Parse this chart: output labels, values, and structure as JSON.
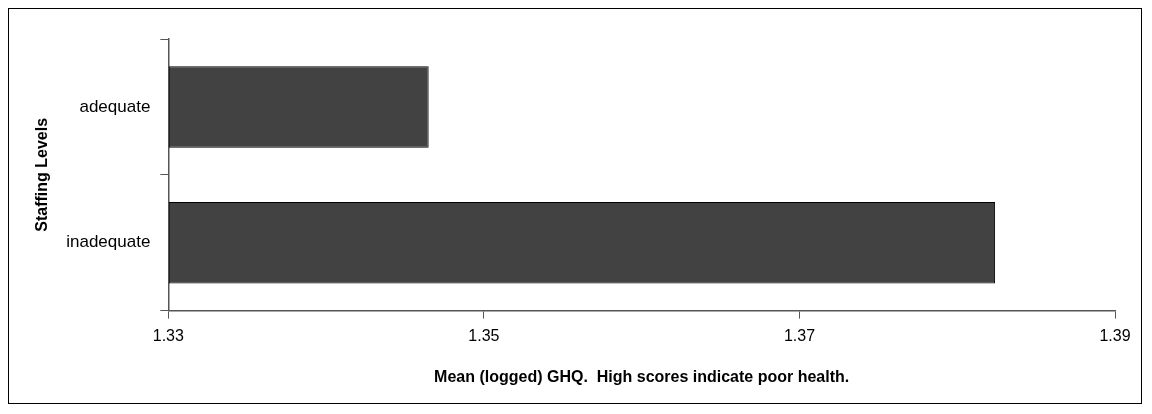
{
  "chart_data": {
    "type": "bar",
    "orientation": "horizontal",
    "categories": [
      "adequate",
      "inadequate"
    ],
    "values": [
      1.3465,
      1.3824
    ],
    "color": "#424242",
    "xlim": [
      1.33,
      1.39
    ],
    "xticks": [
      1.33,
      1.35,
      1.37,
      1.39
    ],
    "xlabel": "Mean (logged) GHQ.  High scores indicate poor health.",
    "ylabel": "Staffing Levels",
    "grid": false,
    "legend": false
  }
}
